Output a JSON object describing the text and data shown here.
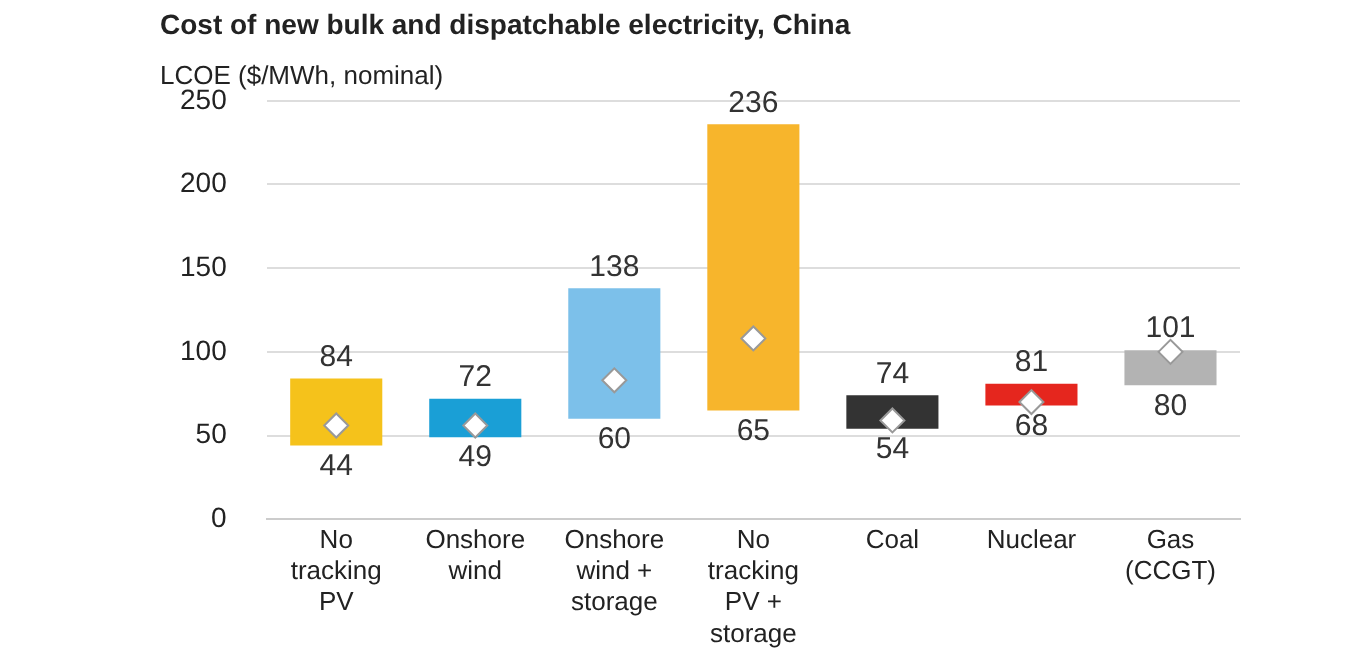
{
  "chart_data": {
    "type": "bar",
    "title": "Cost of new bulk and dispatchable electricity, China",
    "ylabel": "LCOE ($/MWh, nominal)",
    "categories": [
      "No tracking PV",
      "Onshore wind",
      "Onshore wind + storage",
      "No tracking PV + storage",
      "Coal",
      "Nuclear",
      "Gas (CCGT)"
    ],
    "series": [
      {
        "values": [
          40,
          23,
          78,
          171,
          20,
          13,
          21
        ],
        "base": [
          44,
          49,
          60,
          65,
          54,
          68,
          80
        ],
        "colors": [
          "#f5c21b",
          "#1a9fd6",
          "#7cc0ea",
          "#f7b52c",
          "#333333",
          "#e5261e",
          "#b3b3b3"
        ]
      },
      {
        "type": "scatter",
        "x": [
          "No tracking PV",
          "Onshore wind",
          "Onshore wind + storage",
          "No tracking PV + storage",
          "Coal",
          "Nuclear",
          "Gas (CCGT)"
        ],
        "values": [
          56,
          56,
          83,
          108,
          59,
          70,
          100
        ],
        "color": "#ffffff"
      }
    ],
    "marker": "diamond",
    "annotations": [
      {
        "text": "84",
        "x": "No tracking PV",
        "y": 84
      },
      {
        "text": "44",
        "x": "No tracking PV",
        "y": 44
      },
      {
        "text": "72",
        "x": "Onshore wind",
        "y": 72
      },
      {
        "text": "49",
        "x": "Onshore wind",
        "y": 49
      },
      {
        "text": "138",
        "x": "Onshore wind + storage",
        "y": 138
      },
      {
        "text": "60",
        "x": "Onshore wind + storage",
        "y": 60
      },
      {
        "text": "236",
        "x": "No tracking PV + storage",
        "y": 236
      },
      {
        "text": "65",
        "x": "No tracking PV + storage",
        "y": 65
      },
      {
        "text": "74",
        "x": "Coal",
        "y": 74
      },
      {
        "text": "54",
        "x": "Coal",
        "y": 54
      },
      {
        "text": "81",
        "x": "Nuclear",
        "y": 81
      },
      {
        "text": "68",
        "x": "Nuclear",
        "y": 68
      },
      {
        "text": "101",
        "x": "Gas (CCGT)",
        "y": 101
      },
      {
        "text": "80",
        "x": "Gas (CCGT)",
        "y": 80
      }
    ],
    "ylim": [
      0,
      250
    ],
    "yticks": [
      0,
      50,
      100,
      150,
      200,
      250
    ],
    "grid": "y",
    "legend": false
  }
}
